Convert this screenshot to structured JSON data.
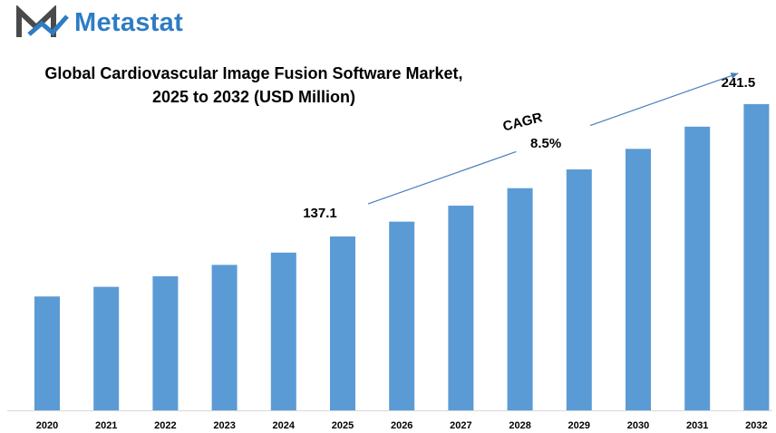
{
  "brand": {
    "name": "Metastat",
    "logo_icon": "metastat-m-logo-icon",
    "color": "#2e7cc4"
  },
  "chart_data": {
    "type": "bar",
    "title_line1": "Global Cardiovascular Image Fusion Software Market,",
    "title_line2": "2025 to 2032 (USD Million)",
    "categories": [
      "2020",
      "2021",
      "2022",
      "2023",
      "2024",
      "2025",
      "2026",
      "2027",
      "2028",
      "2029",
      "2030",
      "2031",
      "2032"
    ],
    "values": [
      89.8,
      97.4,
      105.7,
      114.7,
      124.4,
      137.1,
      148.8,
      161.4,
      175.2,
      190.0,
      206.2,
      223.7,
      241.5
    ],
    "data_labels": [
      {
        "category": "2025",
        "text": "137.1"
      },
      {
        "category": "2032",
        "text": "241.5"
      }
    ],
    "annotation": {
      "label": "CAGR",
      "value": "8.5%",
      "from": "2025",
      "to": "2032"
    },
    "ylim": [
      0,
      250
    ],
    "grid": false,
    "bar_color": "#5b9bd5"
  }
}
